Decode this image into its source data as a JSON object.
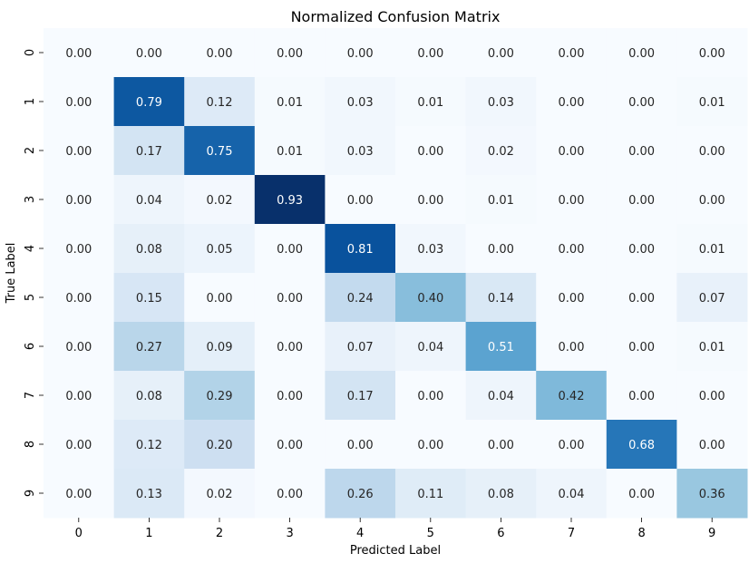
{
  "chart_data": {
    "type": "heatmap",
    "title": "Normalized Confusion Matrix",
    "xlabel": "Predicted Label",
    "ylabel": "True Label",
    "x_categories": [
      "0",
      "1",
      "2",
      "3",
      "4",
      "5",
      "6",
      "7",
      "8",
      "9"
    ],
    "y_categories": [
      "0",
      "1",
      "2",
      "3",
      "4",
      "5",
      "6",
      "7",
      "8",
      "9"
    ],
    "values": [
      [
        0.0,
        0.0,
        0.0,
        0.0,
        0.0,
        0.0,
        0.0,
        0.0,
        0.0,
        0.0
      ],
      [
        0.0,
        0.79,
        0.12,
        0.01,
        0.03,
        0.01,
        0.03,
        0.0,
        0.0,
        0.01
      ],
      [
        0.0,
        0.17,
        0.75,
        0.01,
        0.03,
        0.0,
        0.02,
        0.0,
        0.0,
        0.0
      ],
      [
        0.0,
        0.04,
        0.02,
        0.93,
        0.0,
        0.0,
        0.01,
        0.0,
        0.0,
        0.0
      ],
      [
        0.0,
        0.08,
        0.05,
        0.0,
        0.81,
        0.03,
        0.0,
        0.0,
        0.0,
        0.01
      ],
      [
        0.0,
        0.15,
        0.0,
        0.0,
        0.24,
        0.4,
        0.14,
        0.0,
        0.0,
        0.07
      ],
      [
        0.0,
        0.27,
        0.09,
        0.0,
        0.07,
        0.04,
        0.51,
        0.0,
        0.0,
        0.01
      ],
      [
        0.0,
        0.08,
        0.29,
        0.0,
        0.17,
        0.0,
        0.04,
        0.42,
        0.0,
        0.0
      ],
      [
        0.0,
        0.12,
        0.2,
        0.0,
        0.0,
        0.0,
        0.0,
        0.0,
        0.68,
        0.0
      ],
      [
        0.0,
        0.13,
        0.02,
        0.0,
        0.26,
        0.11,
        0.08,
        0.04,
        0.0,
        0.36
      ]
    ],
    "value_range": [
      0,
      0.93
    ],
    "colormap": "Blues",
    "annotated": true,
    "colorbar": false,
    "grid": false
  }
}
